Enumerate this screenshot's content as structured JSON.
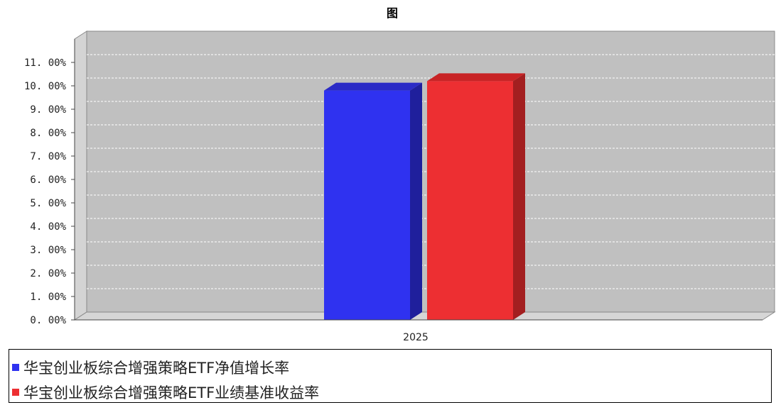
{
  "chart_data": {
    "type": "bar",
    "title": "图",
    "categories": [
      "2025"
    ],
    "series": [
      {
        "name": "华宝创业板综合增强策略ETF净值增长率",
        "values": [
          9.8
        ],
        "color": "#2f32f0",
        "side_color": "#1f1f9c",
        "top_color": "#2b2bc6"
      },
      {
        "name": "华宝创业板综合增强策略ETF业绩基准收益率",
        "values": [
          10.2
        ],
        "color": "#ed2f32",
        "side_color": "#a31f20",
        "top_color": "#c82325"
      }
    ],
    "yticks": [
      "0. 00%",
      "1. 00%",
      "2. 00%",
      "3. 00%",
      "4. 00%",
      "5. 00%",
      "6. 00%",
      "7. 00%",
      "8. 00%",
      "9. 00%",
      "10. 00%",
      "11. 00%"
    ],
    "ylim": [
      0,
      11
    ],
    "grid": true,
    "legend_position": "bottom",
    "plot_background": "#c0c0c0"
  }
}
